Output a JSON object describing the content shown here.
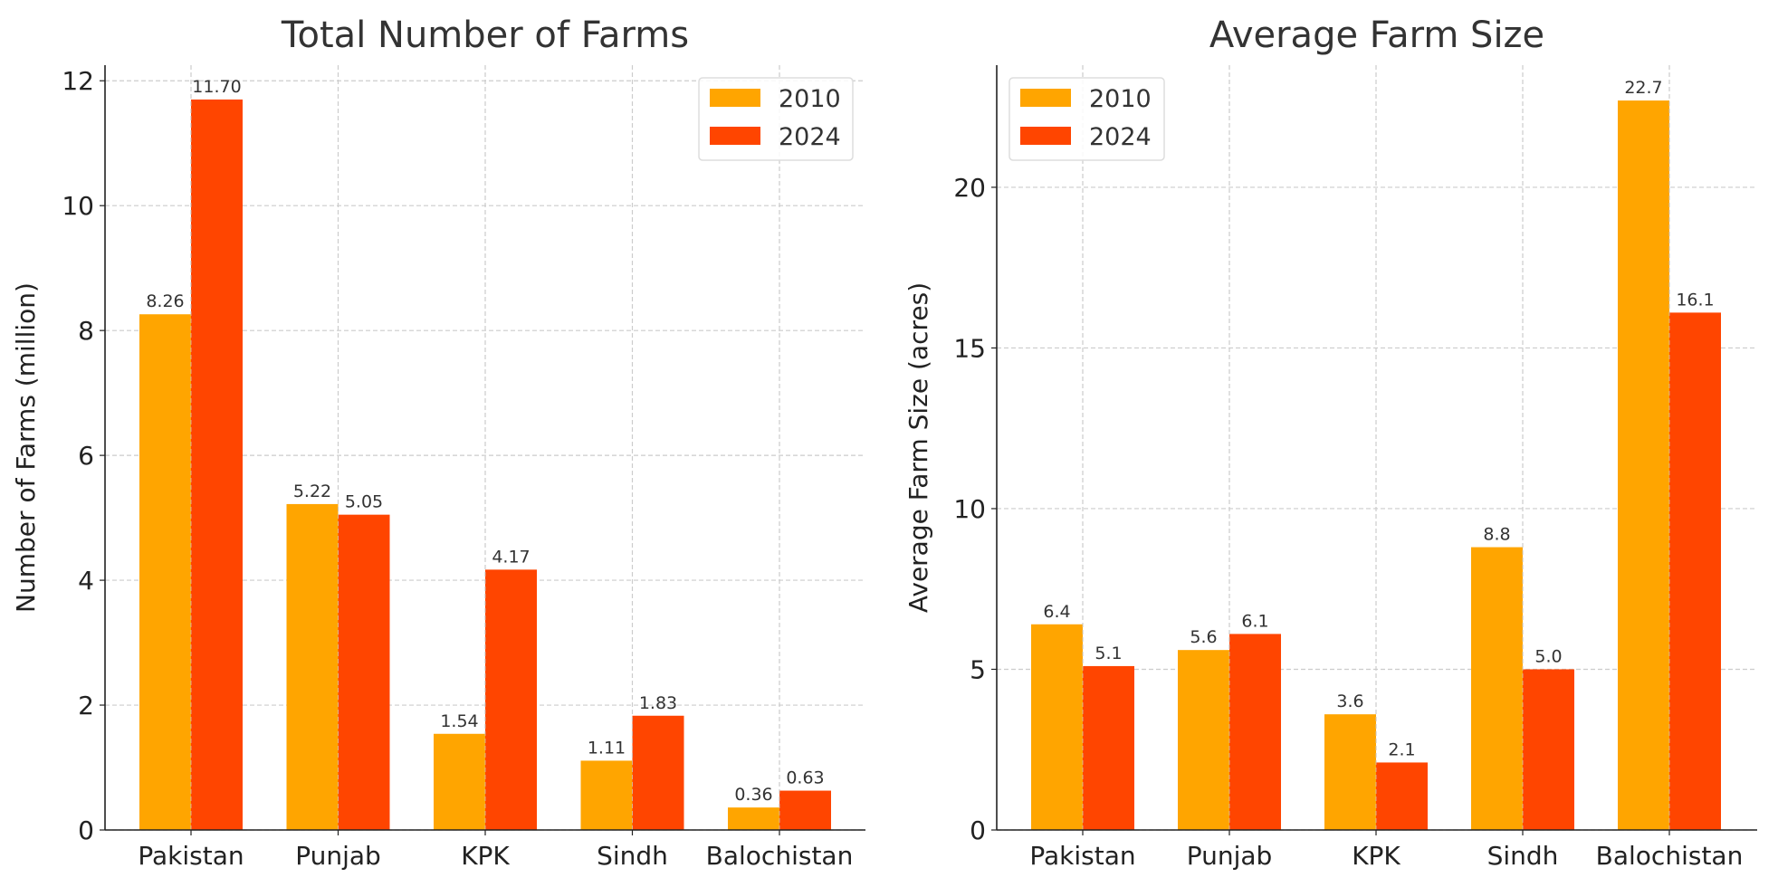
{
  "colors": {
    "2010": "#FFA500",
    "2024": "#FF4500",
    "text": "#333333",
    "grid": "#cccccc"
  },
  "chart_data": [
    {
      "type": "bar",
      "title": "Total Number of Farms",
      "xlabel": "",
      "ylabel": "Number of Farms (million)",
      "categories": [
        "Pakistan",
        "Punjab",
        "KPK",
        "Sindh",
        "Balochistan"
      ],
      "series": [
        {
          "name": "2010",
          "values": [
            8.26,
            5.22,
            1.54,
            1.11,
            0.36
          ],
          "labels": [
            "8.26",
            "5.22",
            "1.54",
            "1.11",
            "0.36"
          ]
        },
        {
          "name": "2024",
          "values": [
            11.7,
            5.05,
            4.17,
            1.83,
            0.63
          ],
          "labels": [
            "11.70",
            "5.05",
            "4.17",
            "1.83",
            "0.63"
          ]
        }
      ],
      "ylim": [
        0,
        12.25
      ],
      "yticks": [
        0,
        2,
        4,
        6,
        8,
        10,
        12
      ],
      "grid": true,
      "legend": "top-right"
    },
    {
      "type": "bar",
      "title": "Average Farm Size",
      "xlabel": "",
      "ylabel": "Average Farm Size (acres)",
      "categories": [
        "Pakistan",
        "Punjab",
        "KPK",
        "Sindh",
        "Balochistan"
      ],
      "series": [
        {
          "name": "2010",
          "values": [
            6.4,
            5.6,
            3.6,
            8.8,
            22.7
          ],
          "labels": [
            "6.4",
            "5.6",
            "3.6",
            "8.8",
            "22.7"
          ]
        },
        {
          "name": "2024",
          "values": [
            5.1,
            6.1,
            2.1,
            5.0,
            16.1
          ],
          "labels": [
            "5.1",
            "6.1",
            "2.1",
            "5.0",
            "16.1"
          ]
        }
      ],
      "ylim": [
        0,
        23.8
      ],
      "yticks": [
        0,
        5,
        10,
        15,
        20
      ],
      "grid": true,
      "legend": "top-left"
    }
  ]
}
